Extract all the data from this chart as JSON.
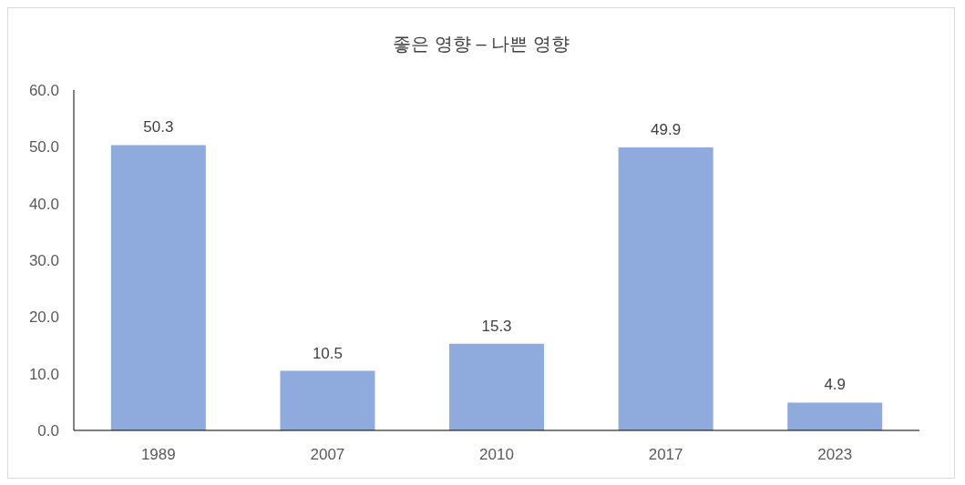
{
  "chart_data": {
    "type": "bar",
    "title": "좋은 영향 – 나쁜 영향",
    "categories": [
      "1989",
      "2007",
      "2010",
      "2017",
      "2023"
    ],
    "values": [
      50.3,
      10.5,
      15.3,
      49.9,
      4.9
    ],
    "color": "#8faadc",
    "ylim": [
      0,
      60
    ],
    "yticks": [
      {
        "value": 0,
        "label": "0.0"
      },
      {
        "value": 10,
        "label": "10.0"
      },
      {
        "value": 20,
        "label": "20.0"
      },
      {
        "value": 30,
        "label": "30.0"
      },
      {
        "value": 40,
        "label": "40.0"
      },
      {
        "value": 50,
        "label": "50.0"
      },
      {
        "value": 60,
        "label": "60.0"
      }
    ],
    "grid": false,
    "legend": false,
    "data_labels": true
  }
}
